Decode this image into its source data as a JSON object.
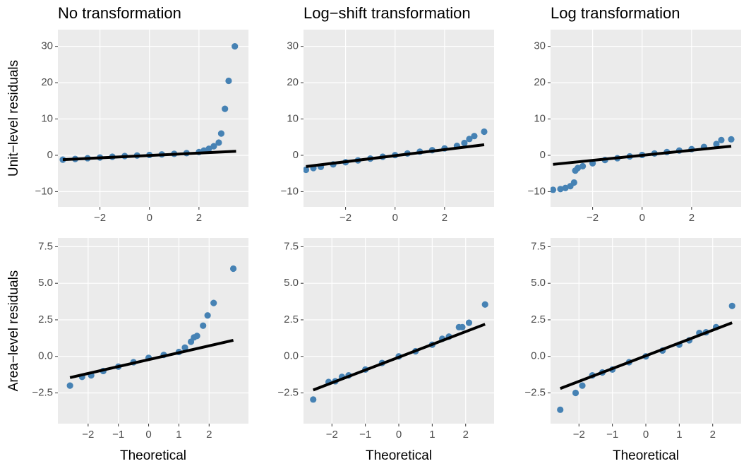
{
  "chart_data": [
    {
      "type": "scatter",
      "title": "No transformation",
      "ylabel": "Unit−level residuals",
      "color": "#4682b4",
      "grid": true,
      "xlim": [
        -3.7,
        4.0
      ],
      "ylim": [
        -14.2,
        34.6
      ],
      "xticks": [
        {
          "value": -2,
          "label": "−2"
        },
        0,
        2
      ],
      "yticks": [
        {
          "value": -10,
          "label": "−10"
        },
        0,
        10,
        20,
        30
      ],
      "x": [
        -3.5,
        -3,
        -2.5,
        -2,
        -1.5,
        -1,
        -0.5,
        0,
        0.5,
        1,
        1.5,
        2,
        2.2,
        2.4,
        2.6,
        2.8,
        2.9,
        3.05,
        3.2,
        3.45
      ],
      "y": [
        -1.2,
        -1.0,
        -0.8,
        -0.6,
        -0.4,
        -0.2,
        -0.05,
        0.1,
        0.25,
        0.4,
        0.6,
        0.9,
        1.3,
        1.8,
        2.5,
        3.5,
        6,
        12.8,
        20.5,
        30
      ],
      "line": {
        "color": "#000000",
        "x": [
          -3.5,
          3.5
        ],
        "y": [
          -1.2,
          1.1
        ]
      }
    },
    {
      "type": "scatter",
      "title": "Log−shift transformation",
      "color": "#4682b4",
      "grid": true,
      "xlim": [
        -3.7,
        4.0
      ],
      "ylim": [
        -14.2,
        34.6
      ],
      "xticks": [
        {
          "value": -2,
          "label": "−2"
        },
        0,
        2
      ],
      "yticks": [
        {
          "value": -10,
          "label": "−10"
        },
        0,
        10,
        20,
        30
      ],
      "x": [
        -3.6,
        -3.3,
        -3,
        -2.5,
        -2,
        -1.5,
        -1,
        -0.5,
        0,
        0.5,
        1,
        1.5,
        2,
        2.5,
        2.8,
        3,
        3.2,
        3.6
      ],
      "y": [
        -4,
        -3.5,
        -3.2,
        -2.5,
        -1.9,
        -1.4,
        -0.9,
        -0.4,
        0.05,
        0.5,
        1.0,
        1.4,
        1.9,
        2.6,
        3.4,
        4.5,
        5.3,
        6.5
      ],
      "line": {
        "color": "#000000",
        "x": [
          -3.6,
          3.6
        ],
        "y": [
          -3.1,
          2.9
        ]
      }
    },
    {
      "type": "scatter",
      "title": "Log transformation",
      "color": "#4682b4",
      "grid": true,
      "xlim": [
        -3.7,
        4.0
      ],
      "ylim": [
        -14.2,
        34.6
      ],
      "xticks": [
        {
          "value": -2,
          "label": "−2"
        },
        0,
        2
      ],
      "yticks": [
        {
          "value": -10,
          "label": "−10"
        },
        0,
        10,
        20,
        30
      ],
      "x": [
        -3.6,
        -3.3,
        -3.1,
        -2.9,
        -2.75,
        -2.7,
        -2.6,
        -2.4,
        -2,
        -1.5,
        -1,
        -0.5,
        0,
        0.5,
        1,
        1.5,
        2,
        2.5,
        3,
        3.2,
        3.6
      ],
      "y": [
        -9.5,
        -9.3,
        -9,
        -8.5,
        -7.5,
        -4.2,
        -3.5,
        -3,
        -2.2,
        -1.3,
        -0.8,
        -0.3,
        0.1,
        0.5,
        0.9,
        1.3,
        1.7,
        2.3,
        3.1,
        4.2,
        4.4
      ],
      "line": {
        "color": "#000000",
        "x": [
          -3.6,
          3.6
        ],
        "y": [
          -2.5,
          2.5
        ]
      }
    },
    {
      "type": "scatter",
      "ylabel": "Area−level residuals",
      "xlabel": "Theoretical",
      "color": "#4682b4",
      "grid": true,
      "xlim": [
        -3.0,
        3.3
      ],
      "ylim": [
        -4.6,
        8.1
      ],
      "xticks": [
        {
          "value": -2,
          "label": "−2"
        },
        {
          "value": -1,
          "label": "−1"
        },
        0,
        1,
        2
      ],
      "yticks": [
        {
          "value": -2.5,
          "label": "−2.5"
        },
        {
          "value": 0,
          "label": "0.0"
        },
        2.5,
        {
          "value": 5,
          "label": "5.0"
        },
        7.5
      ],
      "x": [
        -2.6,
        -2.2,
        -1.9,
        -1.5,
        -1,
        -0.5,
        0,
        0.5,
        1,
        1.2,
        1.4,
        1.5,
        1.6,
        1.8,
        1.95,
        2.15,
        2.8
      ],
      "y": [
        -2.0,
        -1.4,
        -1.3,
        -1.0,
        -0.7,
        -0.4,
        -0.1,
        0.1,
        0.3,
        0.6,
        1.0,
        1.3,
        1.4,
        2.1,
        2.8,
        3.65,
        6.0
      ],
      "line": {
        "color": "#000000",
        "x": [
          -2.6,
          2.8
        ],
        "y": [
          -1.45,
          1.1
        ]
      }
    },
    {
      "type": "scatter",
      "xlabel": "Theoretical",
      "color": "#4682b4",
      "grid": true,
      "xlim": [
        -2.85,
        2.85
      ],
      "ylim": [
        -4.6,
        8.1
      ],
      "xticks": [
        {
          "value": -2,
          "label": "−2"
        },
        {
          "value": -1,
          "label": "−1"
        },
        0,
        1,
        2
      ],
      "yticks": [
        {
          "value": -2.5,
          "label": "−2.5"
        },
        {
          "value": 0,
          "label": "0.0"
        },
        2.5,
        {
          "value": 5,
          "label": "5.0"
        },
        7.5
      ],
      "x": [
        -2.56,
        -2.1,
        -1.9,
        -1.7,
        -1.5,
        -1,
        -0.5,
        0,
        0.5,
        1,
        1.3,
        1.5,
        1.8,
        1.9,
        2.1,
        2.58
      ],
      "y": [
        -2.95,
        -1.75,
        -1.7,
        -1.4,
        -1.3,
        -0.9,
        -0.45,
        0.0,
        0.35,
        0.8,
        1.2,
        1.35,
        2.0,
        2.0,
        2.3,
        3.55
      ],
      "line": {
        "color": "#000000",
        "x": [
          -2.56,
          2.58
        ],
        "y": [
          -2.3,
          2.2
        ]
      }
    },
    {
      "type": "scatter",
      "xlabel": "Theoretical",
      "color": "#4682b4",
      "grid": true,
      "xlim": [
        -2.85,
        2.85
      ],
      "ylim": [
        -4.6,
        8.1
      ],
      "xticks": [
        {
          "value": -2,
          "label": "−2"
        },
        {
          "value": -1,
          "label": "−1"
        },
        0,
        1,
        2
      ],
      "yticks": [
        {
          "value": -2.5,
          "label": "−2.5"
        },
        {
          "value": 0,
          "label": "0.0"
        },
        2.5,
        {
          "value": 5,
          "label": "5.0"
        },
        7.5
      ],
      "x": [
        -2.56,
        -2.1,
        -1.9,
        -1.6,
        -1.3,
        -1,
        -0.5,
        0,
        0.5,
        1,
        1.3,
        1.6,
        1.8,
        2.1,
        2.58
      ],
      "y": [
        -3.65,
        -2.5,
        -2.0,
        -1.3,
        -1.1,
        -0.9,
        -0.4,
        0.0,
        0.4,
        0.8,
        1.1,
        1.6,
        1.65,
        2.0,
        3.45
      ],
      "line": {
        "color": "#000000",
        "x": [
          -2.56,
          2.58
        ],
        "y": [
          -2.2,
          2.3
        ]
      }
    }
  ]
}
